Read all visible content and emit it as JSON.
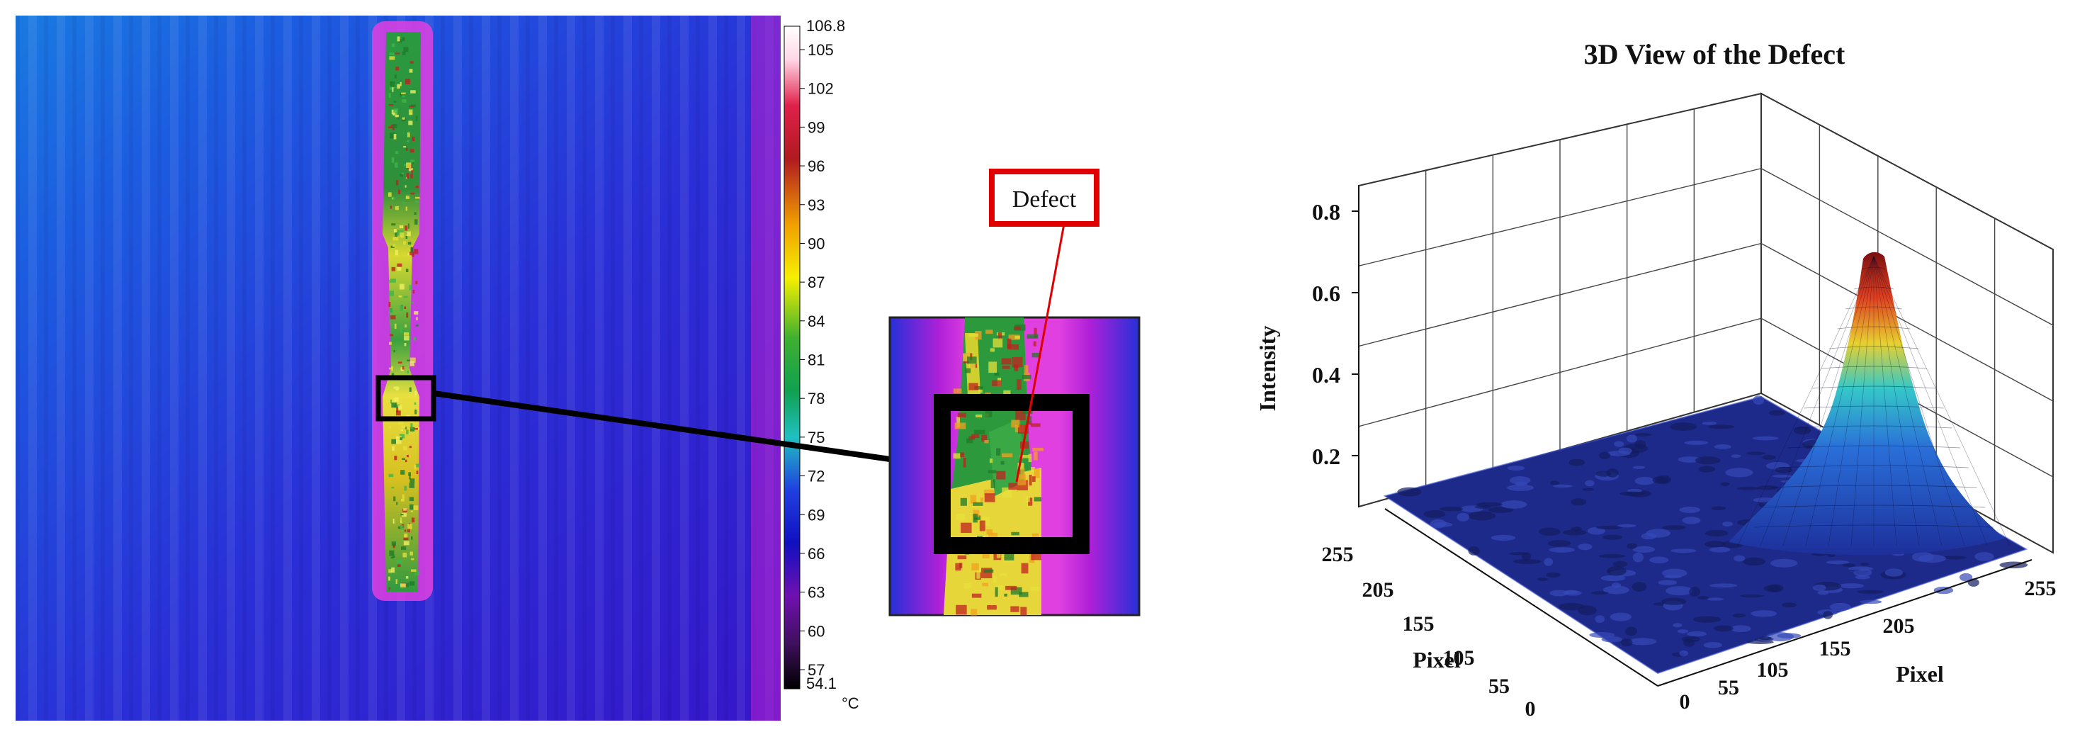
{
  "thermal_image": {
    "colorbar": {
      "max_label": "106.8",
      "min_label": "54.1",
      "unit": "°C",
      "ticks": [
        "105",
        "102",
        "99",
        "96",
        "93",
        "90",
        "87",
        "84",
        "81",
        "78",
        "75",
        "72",
        "69",
        "66",
        "63",
        "60",
        "57"
      ]
    }
  },
  "callout": {
    "defect_label": "Defect"
  },
  "surface_plot": {
    "title": "3D View of the Defect",
    "z_label": "Intensity",
    "z_ticks": [
      "0.8",
      "0.6",
      "0.4",
      "0.2"
    ],
    "left_axis_label": "Pixel",
    "left_axis_ticks": [
      "255",
      "205",
      "155",
      "105",
      "55",
      "0"
    ],
    "right_axis_label": "Pixel",
    "right_axis_ticks": [
      "0",
      "55",
      "105",
      "155",
      "205",
      "255"
    ],
    "z_range": [
      0,
      0.8
    ],
    "peak_intensity": 0.7
  }
}
